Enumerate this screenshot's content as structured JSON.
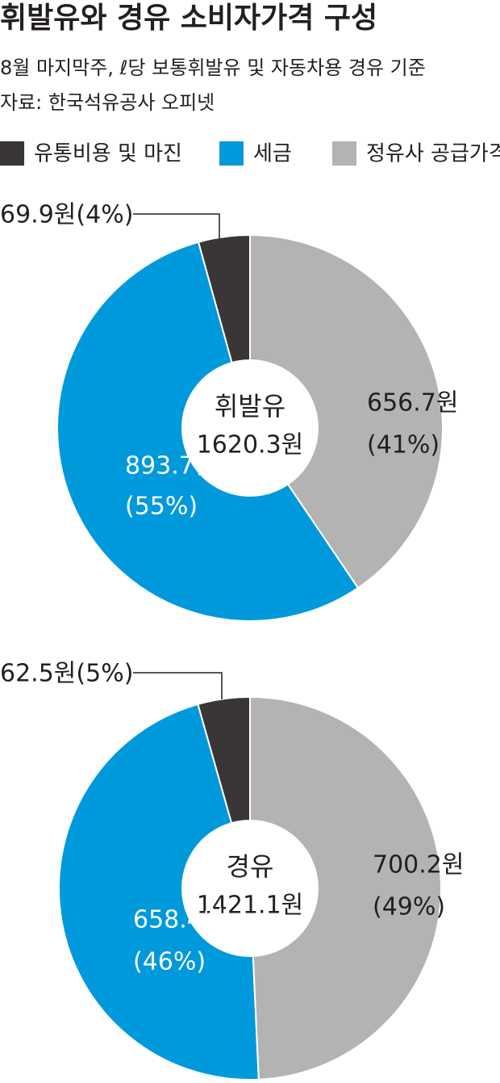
{
  "header": {
    "title": "휘발유와 경유 소비자가격 구성",
    "subtitle": "8월 마지막주, ℓ당 보통휘발유 및 자동차용 경유 기준",
    "source": "자료: 한국석유공사 오피넷"
  },
  "chart_data": [
    {
      "type": "pie",
      "center_label": "휘발유",
      "total_label": "1620.3원",
      "categories": [
        "유통비용 및 마진",
        "세금",
        "정유사 공급가격"
      ],
      "colors": [
        "#3a3536",
        "#0099dc",
        "#b3b3b4"
      ],
      "values": [
        69.9,
        893.7,
        656.7
      ],
      "value_labels": [
        [
          "69.9원(4%)"
        ],
        [
          "893.7원",
          "(55%)"
        ],
        [
          "656.7원",
          "(41%)"
        ]
      ]
    },
    {
      "type": "pie",
      "center_label": "경유",
      "total_label": "1421.1원",
      "categories": [
        "유통비용 및 마진",
        "세금",
        "정유사 공급가격"
      ],
      "colors": [
        "#3a3536",
        "#0099dc",
        "#b3b3b4"
      ],
      "values": [
        62.5,
        658.4,
        700.2
      ],
      "value_labels": [
        [
          "62.5원(5%)"
        ],
        [
          "658.4원",
          "(46%)"
        ],
        [
          "700.2원",
          "(49%)"
        ]
      ]
    }
  ]
}
